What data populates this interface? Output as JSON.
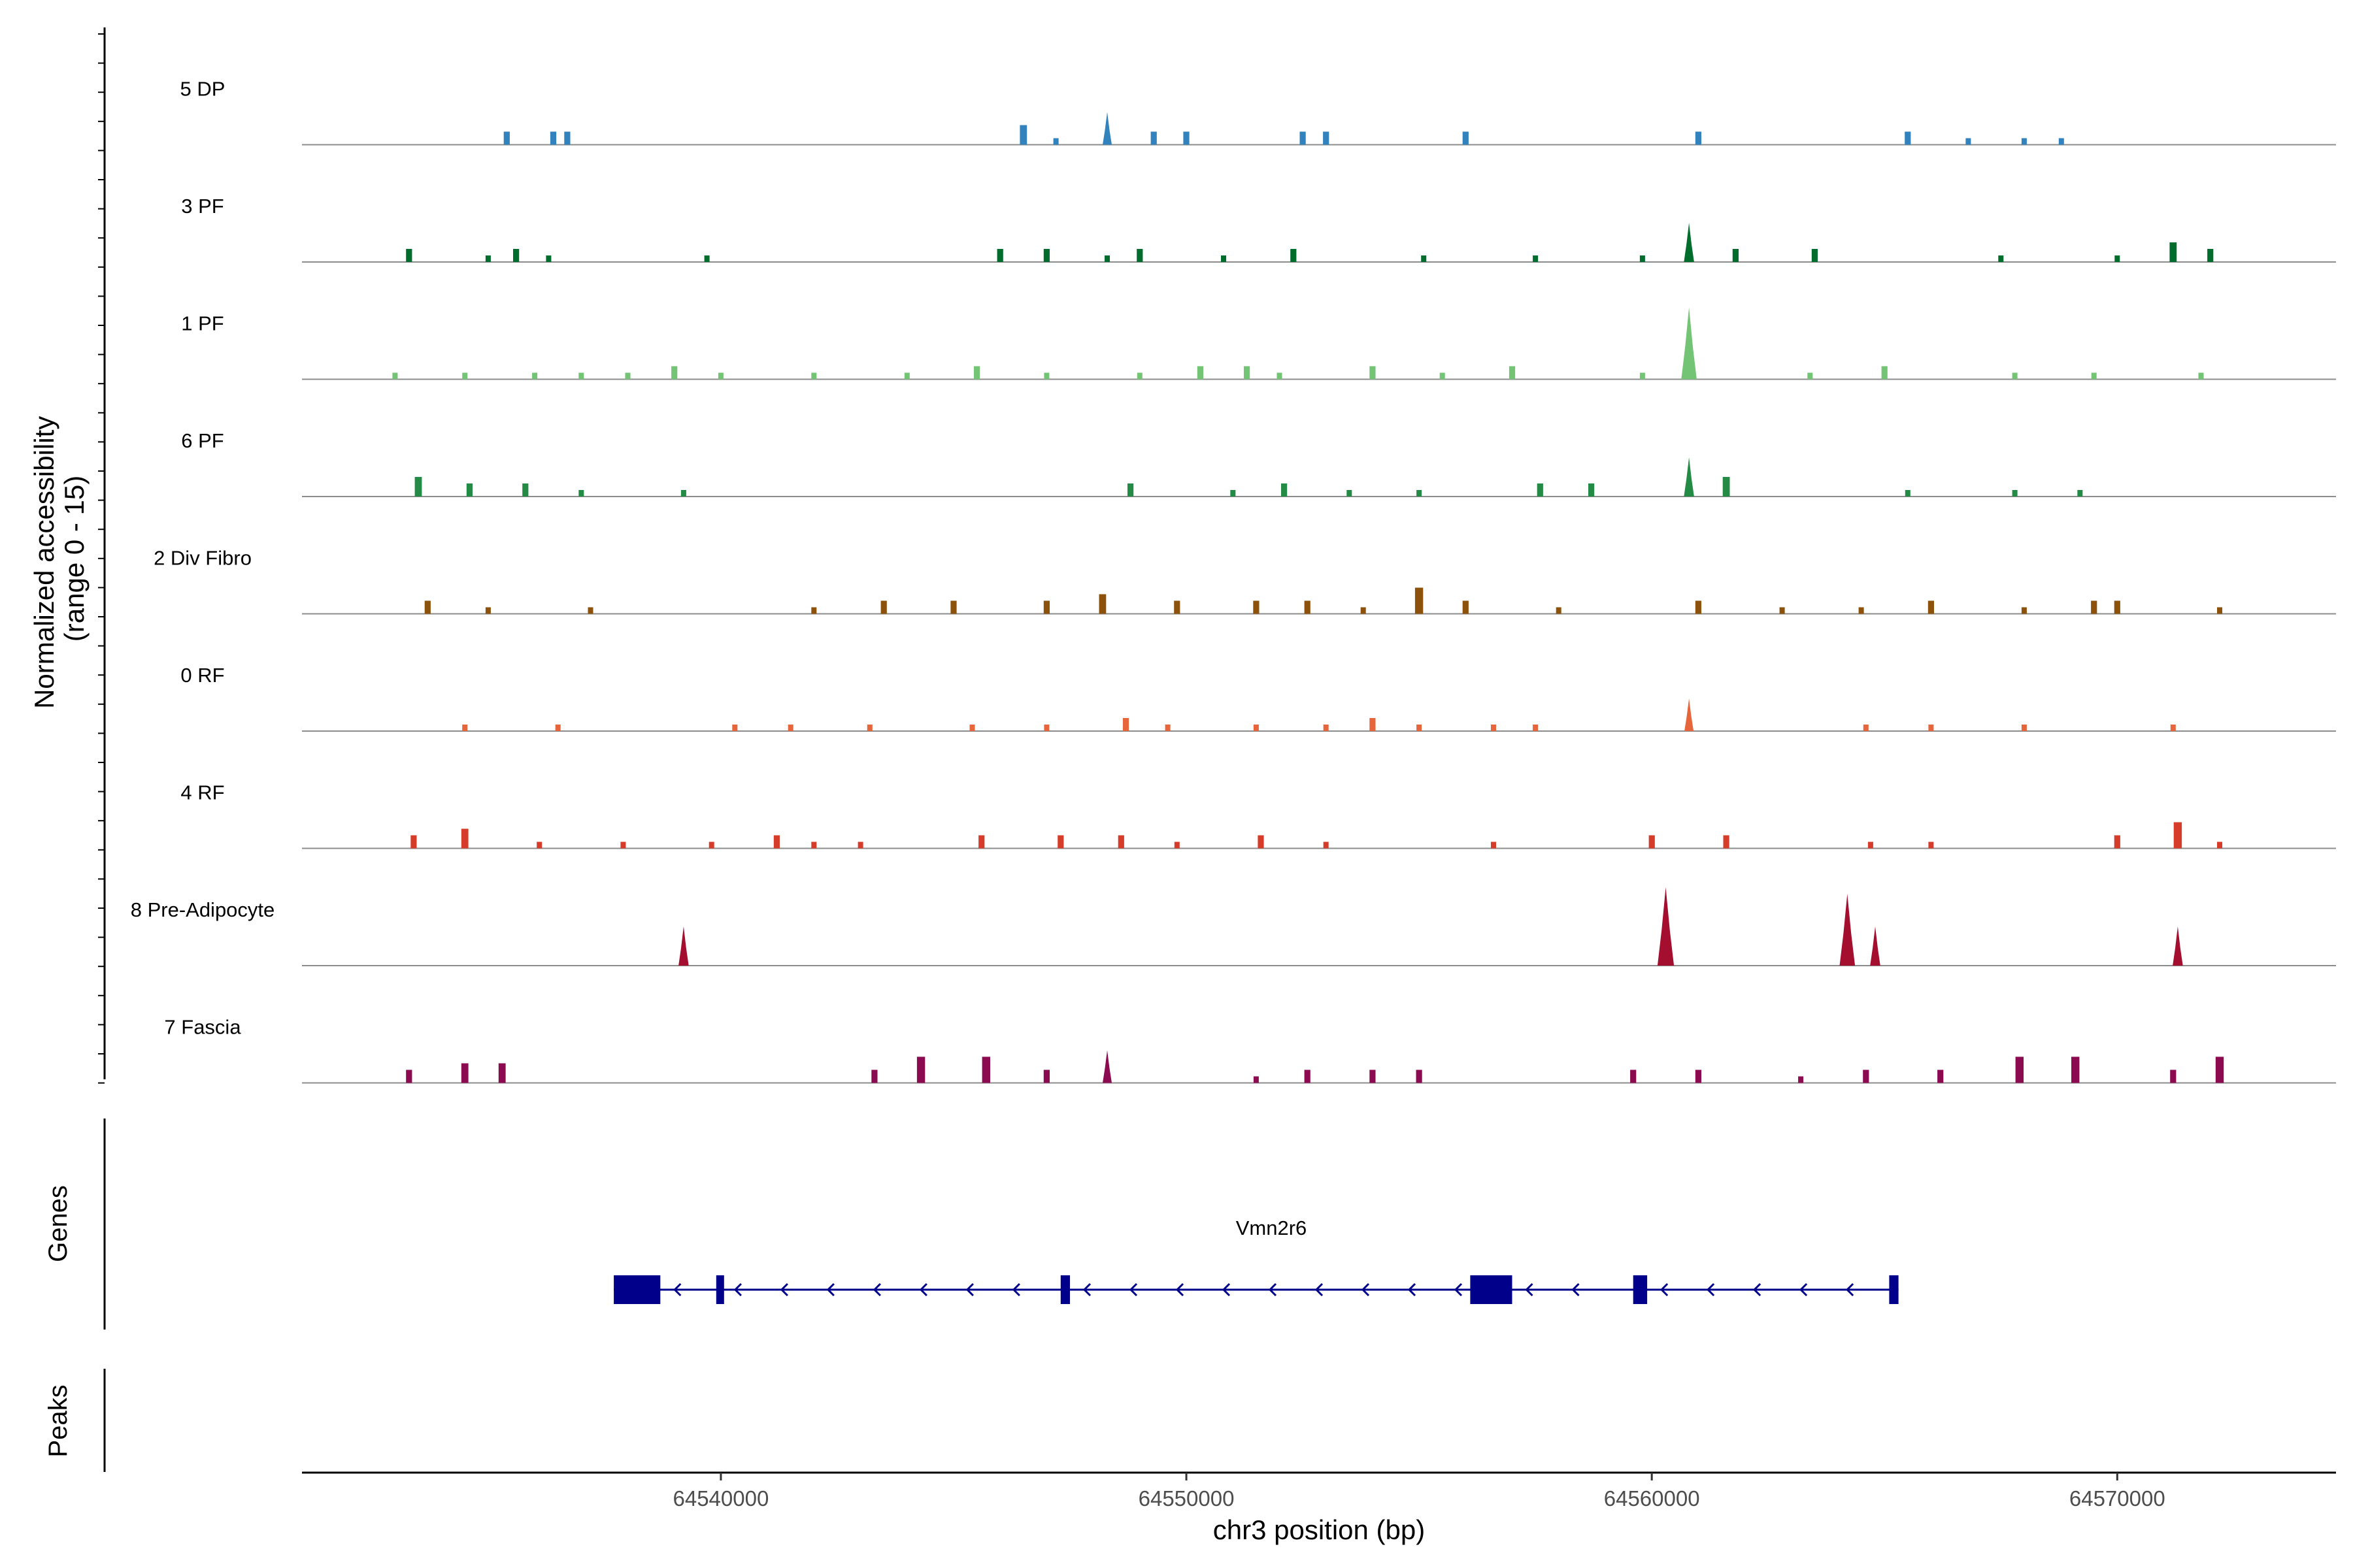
{
  "chart_data": {
    "type": "coverage",
    "region": {
      "chrom": "chr3",
      "start": 64531000,
      "end": 64574700
    },
    "ylabel_line1": "Normalized accessibility",
    "ylabel_line2": "(range 0 - 15)",
    "xlabel": "chr3 position (bp)",
    "ylim": [
      0,
      15
    ],
    "x_ticks": [
      64540000,
      64550000,
      64560000,
      64570000
    ],
    "x_tick_labels": [
      "64540000",
      "64550000",
      "64560000",
      "64570000"
    ],
    "tracks": [
      {
        "name": "5 DP",
        "color": "#3182BD",
        "peaks": [
          [
            64535400,
            2
          ],
          [
            64536400,
            2
          ],
          [
            64536700,
            2
          ],
          [
            64546500,
            3
          ],
          [
            64547200,
            1
          ],
          [
            64548300,
            5
          ],
          [
            64549300,
            2
          ],
          [
            64550000,
            2
          ],
          [
            64552500,
            2
          ],
          [
            64553000,
            2
          ],
          [
            64556000,
            2
          ],
          [
            64561000,
            2
          ],
          [
            64565500,
            2
          ],
          [
            64566800,
            1
          ],
          [
            64568000,
            1
          ],
          [
            64568800,
            1
          ]
        ]
      },
      {
        "name": "3 PF",
        "color": "#006D2C",
        "peaks": [
          [
            64533300,
            2
          ],
          [
            64535000,
            1
          ],
          [
            64535600,
            2
          ],
          [
            64536300,
            1
          ],
          [
            64539700,
            1
          ],
          [
            64546000,
            2
          ],
          [
            64547000,
            2
          ],
          [
            64548300,
            1
          ],
          [
            64549000,
            2
          ],
          [
            64550800,
            1
          ],
          [
            64552300,
            2
          ],
          [
            64555100,
            1
          ],
          [
            64557500,
            1
          ],
          [
            64559800,
            1
          ],
          [
            64560800,
            6
          ],
          [
            64561800,
            2
          ],
          [
            64563500,
            2
          ],
          [
            64567500,
            1
          ],
          [
            64570000,
            1
          ],
          [
            64571200,
            3
          ],
          [
            64572000,
            2
          ]
        ]
      },
      {
        "name": "1 PF",
        "color": "#74C476",
        "peaks": [
          [
            64533000,
            1
          ],
          [
            64534500,
            1
          ],
          [
            64536000,
            1
          ],
          [
            64537000,
            1
          ],
          [
            64538000,
            1
          ],
          [
            64539000,
            2
          ],
          [
            64540000,
            1
          ],
          [
            64542000,
            1
          ],
          [
            64544000,
            1
          ],
          [
            64545500,
            2
          ],
          [
            64547000,
            1
          ],
          [
            64549000,
            1
          ],
          [
            64550300,
            2
          ],
          [
            64551300,
            2
          ],
          [
            64552000,
            1
          ],
          [
            64554000,
            2
          ],
          [
            64555500,
            1
          ],
          [
            64557000,
            2
          ],
          [
            64559800,
            1
          ],
          [
            64560800,
            11
          ],
          [
            64563400,
            1
          ],
          [
            64565000,
            2
          ],
          [
            64567800,
            1
          ],
          [
            64569500,
            1
          ],
          [
            64571800,
            1
          ]
        ]
      },
      {
        "name": "6 PF",
        "color": "#238B45",
        "peaks": [
          [
            64533500,
            3
          ],
          [
            64534600,
            2
          ],
          [
            64535800,
            2
          ],
          [
            64537000,
            1
          ],
          [
            64539200,
            1
          ],
          [
            64548800,
            2
          ],
          [
            64551000,
            1
          ],
          [
            64552100,
            2
          ],
          [
            64553500,
            1
          ],
          [
            64555000,
            1
          ],
          [
            64557600,
            2
          ],
          [
            64558700,
            2
          ],
          [
            64560800,
            6
          ],
          [
            64561600,
            3
          ],
          [
            64565500,
            1
          ],
          [
            64567800,
            1
          ],
          [
            64569200,
            1
          ]
        ]
      },
      {
        "name": "2 Div Fibro",
        "color": "#8C510A",
        "peaks": [
          [
            64533700,
            2
          ],
          [
            64535000,
            1
          ],
          [
            64537200,
            1
          ],
          [
            64542000,
            1
          ],
          [
            64543500,
            2
          ],
          [
            64545000,
            2
          ],
          [
            64547000,
            2
          ],
          [
            64548200,
            3
          ],
          [
            64549800,
            2
          ],
          [
            64551500,
            2
          ],
          [
            64552600,
            2
          ],
          [
            64553800,
            1
          ],
          [
            64555000,
            4
          ],
          [
            64556000,
            2
          ],
          [
            64558000,
            1
          ],
          [
            64561000,
            2
          ],
          [
            64562800,
            1
          ],
          [
            64564500,
            1
          ],
          [
            64566000,
            2
          ],
          [
            64568000,
            1
          ],
          [
            64569500,
            2
          ],
          [
            64570000,
            2
          ],
          [
            64572200,
            1
          ]
        ]
      },
      {
        "name": "0 RF",
        "color": "#E6653A",
        "peaks": [
          [
            64534500,
            1
          ],
          [
            64536500,
            1
          ],
          [
            64540300,
            1
          ],
          [
            64541500,
            1
          ],
          [
            64543200,
            1
          ],
          [
            64545400,
            1
          ],
          [
            64547000,
            1
          ],
          [
            64548700,
            2
          ],
          [
            64549600,
            1
          ],
          [
            64551500,
            1
          ],
          [
            64553000,
            1
          ],
          [
            64554000,
            2
          ],
          [
            64555000,
            1
          ],
          [
            64556600,
            1
          ],
          [
            64557500,
            1
          ],
          [
            64560800,
            5
          ],
          [
            64564600,
            1
          ],
          [
            64566000,
            1
          ],
          [
            64568000,
            1
          ],
          [
            64571200,
            1
          ]
        ]
      },
      {
        "name": "4 RF",
        "color": "#D63C2A",
        "peaks": [
          [
            64533400,
            2
          ],
          [
            64534500,
            3
          ],
          [
            64536100,
            1
          ],
          [
            64537900,
            1
          ],
          [
            64539800,
            1
          ],
          [
            64541200,
            2
          ],
          [
            64542000,
            1
          ],
          [
            64543000,
            1
          ],
          [
            64545600,
            2
          ],
          [
            64547300,
            2
          ],
          [
            64548600,
            2
          ],
          [
            64549800,
            1
          ],
          [
            64551600,
            2
          ],
          [
            64553000,
            1
          ],
          [
            64556600,
            1
          ],
          [
            64560000,
            2
          ],
          [
            64561600,
            2
          ],
          [
            64564700,
            1
          ],
          [
            64566000,
            1
          ],
          [
            64570000,
            2
          ],
          [
            64571300,
            4
          ],
          [
            64572200,
            1
          ]
        ]
      },
      {
        "name": "8 Pre-Adipocyte",
        "color": "#A50F2F",
        "peaks": [
          [
            64539200,
            6
          ],
          [
            64560300,
            12
          ],
          [
            64564200,
            11
          ],
          [
            64564800,
            6
          ],
          [
            64571300,
            6
          ]
        ]
      },
      {
        "name": "7 Fascia",
        "color": "#8B0A50",
        "peaks": [
          [
            64533300,
            2
          ],
          [
            64534500,
            3
          ],
          [
            64535300,
            3
          ],
          [
            64543300,
            2
          ],
          [
            64544300,
            4
          ],
          [
            64545700,
            4
          ],
          [
            64547000,
            2
          ],
          [
            64548300,
            5
          ],
          [
            64551500,
            1
          ],
          [
            64552600,
            2
          ],
          [
            64554000,
            2
          ],
          [
            64555000,
            2
          ],
          [
            64559600,
            2
          ],
          [
            64561000,
            2
          ],
          [
            64563200,
            1
          ],
          [
            64564600,
            2
          ],
          [
            64566200,
            2
          ],
          [
            64567900,
            4
          ],
          [
            64569100,
            4
          ],
          [
            64571200,
            2
          ],
          [
            64572200,
            4
          ]
        ]
      }
    ],
    "genes": {
      "panel_label": "Genes",
      "gene_name": "Vmn2r6",
      "strand": "-",
      "color": "#00008B",
      "start": 64537700,
      "end": 64565300,
      "exons": [
        [
          64537700,
          64538700
        ],
        [
          64539900,
          64540000
        ],
        [
          64547300,
          64547500
        ],
        [
          64556100,
          64557000
        ],
        [
          64559600,
          64559900
        ],
        [
          64565100,
          64565300
        ]
      ]
    },
    "peaks_panel": {
      "panel_label": "Peaks",
      "regions": []
    }
  }
}
